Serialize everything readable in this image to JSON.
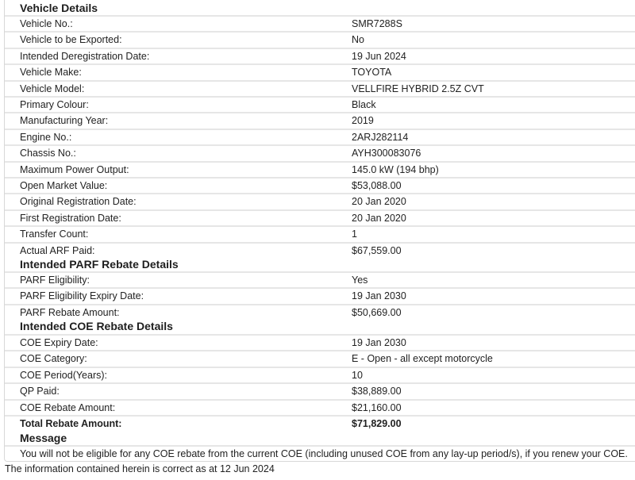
{
  "vehicle_details": {
    "title": "Vehicle Details",
    "rows": [
      {
        "label": "Vehicle No.:",
        "value": "SMR7288S"
      },
      {
        "label": "Vehicle to be Exported:",
        "value": "No"
      },
      {
        "label": "Intended Deregistration Date:",
        "value": "19 Jun 2024"
      },
      {
        "label": "Vehicle Make:",
        "value": "TOYOTA"
      },
      {
        "label": "Vehicle Model:",
        "value": "VELLFIRE HYBRID 2.5Z CVT"
      },
      {
        "label": "Primary Colour:",
        "value": "Black"
      },
      {
        "label": "Manufacturing Year:",
        "value": "2019"
      },
      {
        "label": "Engine No.:",
        "value": "2ARJ282114"
      },
      {
        "label": "Chassis No.:",
        "value": "AYH300083076"
      },
      {
        "label": "Maximum Power Output:",
        "value": "145.0 kW  (194 bhp)"
      },
      {
        "label": "Open Market Value:",
        "value": "$53,088.00"
      },
      {
        "label": "Original Registration Date:",
        "value": "20 Jan 2020"
      },
      {
        "label": "First Registration Date:",
        "value": "20 Jan 2020"
      },
      {
        "label": "Transfer Count:",
        "value": "1"
      },
      {
        "label": "Actual ARF Paid:",
        "value": "$67,559.00"
      }
    ]
  },
  "parf": {
    "title": "Intended PARF Rebate Details",
    "rows": [
      {
        "label": "PARF Eligibility:",
        "value": "Yes"
      },
      {
        "label": "PARF Eligibility Expiry Date:",
        "value": "19 Jan 2030"
      },
      {
        "label": "PARF Rebate Amount:",
        "value": "$50,669.00"
      }
    ]
  },
  "coe": {
    "title": "Intended COE Rebate Details",
    "rows": [
      {
        "label": "COE Expiry Date:",
        "value": "19 Jan 2030"
      },
      {
        "label": "COE Category:",
        "value": "E - Open - all except motorcycle"
      },
      {
        "label": "COE Period(Years):",
        "value": "10"
      },
      {
        "label": "QP Paid:",
        "value": "$38,889.00"
      },
      {
        "label": "COE Rebate Amount:",
        "value": "$21,160.00"
      },
      {
        "label": "Total Rebate Amount:",
        "value": "$71,829.00"
      }
    ]
  },
  "message": {
    "title": "Message",
    "text": "You will not be eligible for any COE rebate from the current COE (including unused COE from any lay-up period/s), if you renew your COE."
  },
  "footer": "The information contained herein is correct as at 12 Jun 2024"
}
